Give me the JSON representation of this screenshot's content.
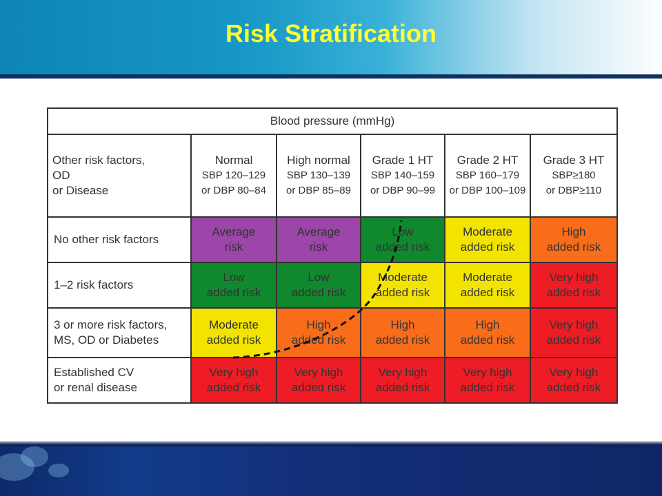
{
  "slide": {
    "title": "Risk Stratification"
  },
  "table": {
    "header": "Blood pressure (mmHg)",
    "corner_lines": [
      "Other risk factors,",
      "OD",
      "or Disease"
    ],
    "columns": [
      {
        "name": "Normal",
        "sbp": "SBP 120–129",
        "dbp": "or DBP 80–84"
      },
      {
        "name": "High normal",
        "sbp": "SBP 130–139",
        "dbp": "or DBP 85–89"
      },
      {
        "name": "Grade 1 HT",
        "sbp": "SBP 140–159",
        "dbp": "or DBP 90–99"
      },
      {
        "name": "Grade 2 HT",
        "sbp": "SBP 160–179",
        "dbp": "or DBP 100–109"
      },
      {
        "name": "Grade 3 HT",
        "sbp": "SBP≥180",
        "dbp": "or DBP≥110"
      }
    ],
    "rows": [
      {
        "label_lines": [
          "No other risk factors"
        ],
        "cells": [
          {
            "l1": "Average",
            "l2": "risk",
            "level": "average",
            "color": "#9b46a8"
          },
          {
            "l1": "Average",
            "l2": "risk",
            "level": "average",
            "color": "#9b46a8"
          },
          {
            "l1": "Low",
            "l2": "added risk",
            "level": "low",
            "color": "#10882e"
          },
          {
            "l1": "Moderate",
            "l2": "added risk",
            "level": "moderate",
            "color": "#f2e400"
          },
          {
            "l1": "High",
            "l2": "added risk",
            "level": "high",
            "color": "#f86c1a"
          }
        ]
      },
      {
        "label_lines": [
          "1–2 risk factors"
        ],
        "cells": [
          {
            "l1": "Low",
            "l2": "added risk",
            "level": "low",
            "color": "#10882e"
          },
          {
            "l1": "Low",
            "l2": "added risk",
            "level": "low",
            "color": "#10882e"
          },
          {
            "l1": "Moderate",
            "l2": "added risk",
            "level": "moderate",
            "color": "#f2e400"
          },
          {
            "l1": "Moderate",
            "l2": "added risk",
            "level": "moderate",
            "color": "#f2e400"
          },
          {
            "l1": "Very high",
            "l2": "added risk",
            "level": "very-high",
            "color": "#ee1c25"
          }
        ]
      },
      {
        "label_lines": [
          "3 or more risk factors,",
          "MS, OD or Diabetes"
        ],
        "cells": [
          {
            "l1": "Moderate",
            "l2": "added risk",
            "level": "moderate",
            "color": "#f2e400"
          },
          {
            "l1": "High",
            "l2": "added risk",
            "level": "high",
            "color": "#f86c1a"
          },
          {
            "l1": "High",
            "l2": "added risk",
            "level": "high",
            "color": "#f86c1a"
          },
          {
            "l1": "High",
            "l2": "added risk",
            "level": "high",
            "color": "#f86c1a"
          },
          {
            "l1": "Very high",
            "l2": "added risk",
            "level": "very-high",
            "color": "#ee1c25"
          }
        ]
      },
      {
        "label_lines": [
          "Established CV",
          "or renal disease"
        ],
        "cells": [
          {
            "l1": "Very high",
            "l2": "added risk",
            "level": "very-high",
            "color": "#ee1c25"
          },
          {
            "l1": "Very high",
            "l2": "added risk",
            "level": "very-high",
            "color": "#ee1c25"
          },
          {
            "l1": "Very high",
            "l2": "added risk",
            "level": "very-high",
            "color": "#ee1c25"
          },
          {
            "l1": "Very high",
            "l2": "added risk",
            "level": "very-high",
            "color": "#ee1c25"
          },
          {
            "l1": "Very high",
            "l2": "added risk",
            "level": "very-high",
            "color": "#ee1c25"
          }
        ]
      }
    ]
  },
  "colors": {
    "header_blue": "#1798c6",
    "title_yellow": "#ffff33",
    "footer_navy": "#123b8a"
  }
}
